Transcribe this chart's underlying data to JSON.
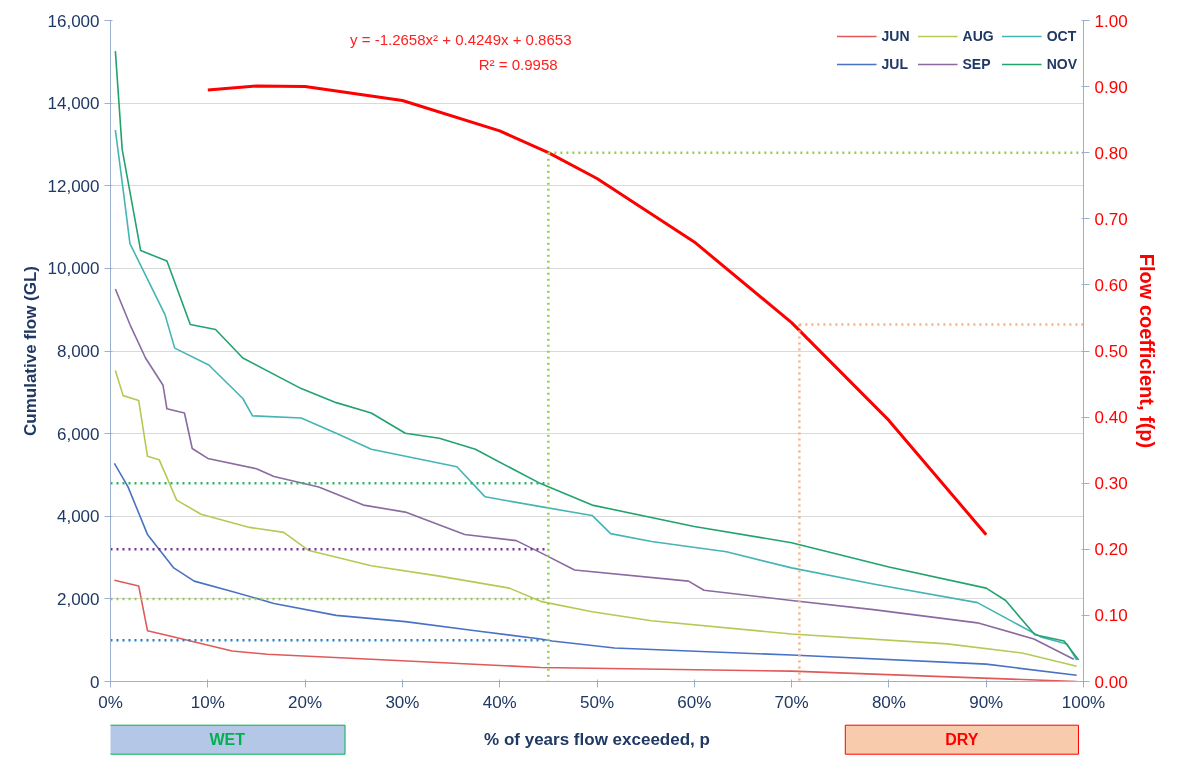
{
  "chart_data": {
    "type": "line",
    "xlabel": "% of years flow exceeded, p",
    "ylabel": "Cumulative flow (GL)",
    "y2label": "Flow coefficient, f(p)",
    "xlim": [
      0,
      100
    ],
    "xticks": [
      {
        "value": 0,
        "label": "0%"
      },
      {
        "value": 10,
        "label": "10%"
      },
      {
        "value": 20,
        "label": "20%"
      },
      {
        "value": 30,
        "label": "30%"
      },
      {
        "value": 40,
        "label": "40%"
      },
      {
        "value": 50,
        "label": "50%"
      },
      {
        "value": 60,
        "label": "60%"
      },
      {
        "value": 70,
        "label": "70%"
      },
      {
        "value": 80,
        "label": "80%"
      },
      {
        "value": 90,
        "label": "90%"
      },
      {
        "value": 100,
        "label": "100%"
      }
    ],
    "ylim": [
      0,
      16000
    ],
    "yticks": [
      0,
      {
        "value": 2000,
        "label": "2,000"
      },
      {
        "value": 4000,
        "label": "4,000"
      },
      {
        "value": 6000,
        "label": "6,000"
      },
      {
        "value": 8000,
        "label": "8,000"
      },
      {
        "value": 10000,
        "label": "10,000"
      },
      {
        "value": 12000,
        "label": "12,000"
      },
      {
        "value": 14000,
        "label": "14,000"
      },
      {
        "value": 16000,
        "label": "16,000"
      }
    ],
    "y2lim": [
      0,
      1
    ],
    "y2ticks": [
      {
        "value": 0,
        "label": "0.00"
      },
      {
        "value": 0.1,
        "label": "0.10"
      },
      {
        "value": 0.2,
        "label": "0.20"
      },
      {
        "value": 0.3,
        "label": "0.30"
      },
      {
        "value": 0.4,
        "label": "0.40"
      },
      {
        "value": 0.5,
        "label": "0.50"
      },
      {
        "value": 0.6,
        "label": "0.60"
      },
      {
        "value": 0.7,
        "label": "0.70"
      },
      {
        "value": 0.8,
        "label": "0.80"
      },
      {
        "value": 0.9,
        "label": "0.90"
      },
      {
        "value": 1,
        "label": "1.00"
      }
    ],
    "grid": "y",
    "legend": "top right",
    "annotations": [
      "y = -1.2658x² + 0.4249x + 0.8653",
      "R² = 0.9958",
      "WET",
      "DRY"
    ],
    "series": [
      {
        "name": "JUN",
        "color": "#e05a5a",
        "x": [
          0.4,
          2.9,
          3.8,
          6.1,
          12.5,
          16.1,
          26.8,
          44.2,
          70,
          99.3
        ],
        "values": [
          2450,
          2310,
          1230,
          1100,
          740,
          660,
          540,
          340,
          250,
          0
        ]
      },
      {
        "name": "JUL",
        "color": "#4a72c4",
        "x": [
          0.4,
          1.8,
          3.8,
          6.5,
          8.6,
          12.5,
          16.8,
          23.2,
          30.3,
          37.5,
          44.2,
          45.4,
          51.8,
          70,
          90,
          99.3
        ],
        "values": [
          5280,
          4710,
          3560,
          2750,
          2430,
          2180,
          1890,
          1600,
          1450,
          1230,
          1030,
          980,
          810,
          640,
          420,
          150
        ]
      },
      {
        "name": "AUG",
        "color": "#b5c955",
        "x": [
          0.5,
          1.3,
          2.9,
          3.8,
          5,
          6.8,
          9.3,
          14.3,
          17.8,
          20.4,
          26.8,
          33.8,
          41,
          44.2,
          49.5,
          55.6,
          70,
          86,
          93.7,
          99.3
        ],
        "values": [
          7530,
          6920,
          6800,
          5450,
          5370,
          4390,
          4050,
          3730,
          3610,
          3170,
          2800,
          2550,
          2260,
          1940,
          1690,
          1470,
          1150,
          910,
          690,
          370
        ]
      },
      {
        "name": "SEP",
        "color": "#8a6aa0",
        "x": [
          0.5,
          2,
          3.6,
          5.4,
          5.8,
          7.6,
          8.4,
          10,
          15,
          16.8,
          21.4,
          26,
          30.3,
          36.4,
          41.7,
          44.2,
          47.7,
          59.4,
          61,
          70,
          78.4,
          89.1,
          94.9,
          99
        ],
        "values": [
          9500,
          8640,
          7830,
          7170,
          6600,
          6500,
          5640,
          5400,
          5150,
          4960,
          4710,
          4270,
          4100,
          3560,
          3410,
          3120,
          2700,
          2430,
          2210,
          1960,
          1740,
          1420,
          1030,
          540
        ]
      },
      {
        "name": "OCT",
        "color": "#45b4b4",
        "x": [
          0.5,
          1.3,
          2,
          5.6,
          6.6,
          10.1,
          13.6,
          14.6,
          19.6,
          23.2,
          26.8,
          35.6,
          38.5,
          44.5,
          49.5,
          51.4,
          55.6,
          63.3,
          70,
          78.4,
          89.1,
          95.6,
          98.3,
          99.3
        ],
        "values": [
          13350,
          11900,
          10600,
          8880,
          8070,
          7660,
          6850,
          6430,
          6380,
          6010,
          5620,
          5200,
          4470,
          4220,
          4020,
          3580,
          3390,
          3140,
          2750,
          2360,
          1910,
          1080,
          910,
          520
        ]
      },
      {
        "name": "NOV",
        "color": "#22a36e",
        "x": [
          0.5,
          1.2,
          3.1,
          5.8,
          8.2,
          10.8,
          13.6,
          19.6,
          23.2,
          26.8,
          30.3,
          33.8,
          37.5,
          44.2,
          49.5,
          60,
          70,
          80,
          90,
          92,
          95,
          98,
          99.5
        ],
        "values": [
          15260,
          12880,
          10430,
          10180,
          8640,
          8520,
          7830,
          7090,
          6750,
          6500,
          6010,
          5890,
          5620,
          4790,
          4270,
          3750,
          3360,
          2770,
          2260,
          1960,
          1130,
          980,
          520
        ]
      },
      {
        "color": "#ff0000",
        "axis": "y2",
        "x": [
          10,
          15,
          20,
          30,
          40,
          45,
          50,
          60,
          70,
          80,
          90
        ],
        "values": [
          0.895,
          0.901,
          0.9,
          0.879,
          0.833,
          0.8,
          0.761,
          0.665,
          0.543,
          0.395,
          0.222
        ]
      },
      {
        "color": "#2eb060",
        "line_style": "dotted",
        "x": [
          0,
          45
        ],
        "values": [
          4800,
          4800
        ]
      },
      {
        "color": "#7030a0",
        "line_style": "dotted",
        "x": [
          0,
          45
        ],
        "values": [
          3200,
          3200
        ]
      },
      {
        "color": "#92d050",
        "line_style": "dotted",
        "x": [
          0,
          45
        ],
        "values": [
          2000,
          2000
        ]
      },
      {
        "color": "#2080d0",
        "line_style": "dotted",
        "x": [
          0,
          45
        ],
        "values": [
          1000,
          1000
        ]
      },
      {
        "color": "#92d050",
        "line_style": "dotted",
        "axis": "y2",
        "x": [
          45,
          45
        ],
        "values": [
          0.8,
          0
        ]
      },
      {
        "color": "#92d050",
        "line_style": "dotted",
        "axis": "y2",
        "x": [
          45,
          100
        ],
        "values": [
          0.8,
          0.8
        ]
      },
      {
        "color": "#f4b183",
        "line_style": "dotted",
        "axis": "y2",
        "x": [
          70.8,
          70.8
        ],
        "values": [
          0.54,
          0
        ]
      },
      {
        "color": "#f4b183",
        "line_style": "dotted",
        "axis": "y2",
        "x": [
          70.8,
          100
        ],
        "values": [
          0.54,
          0.54
        ]
      }
    ]
  }
}
